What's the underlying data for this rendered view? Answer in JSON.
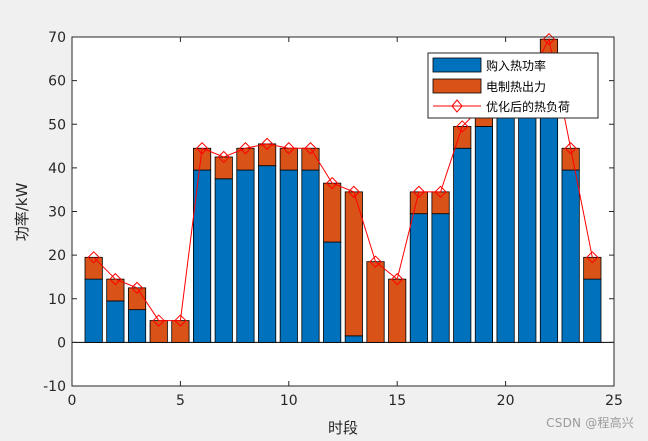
{
  "chart_data": {
    "type": "bar",
    "xlabel": "时段",
    "ylabel": "功率/kW",
    "xlim": [
      0,
      25
    ],
    "ylim": [
      -10,
      70
    ],
    "xticks": [
      0,
      5,
      10,
      15,
      20,
      25
    ],
    "yticks": [
      -10,
      0,
      10,
      20,
      30,
      40,
      50,
      60,
      70
    ],
    "grid": false,
    "legend_position": "top-right",
    "x": [
      1,
      2,
      3,
      4,
      5,
      6,
      7,
      8,
      9,
      10,
      11,
      12,
      13,
      14,
      15,
      16,
      17,
      18,
      19,
      20,
      21,
      22,
      23,
      24
    ],
    "stacked": true,
    "series": [
      {
        "name": "购入热功率",
        "kind": "bar",
        "color": "#0072BD",
        "values": [
          14.5,
          9.5,
          7.5,
          0,
          0,
          39.5,
          37.5,
          39.5,
          40.5,
          39.5,
          39.5,
          23,
          1.5,
          0,
          0,
          29.5,
          29.5,
          44.5,
          49.5,
          54,
          54,
          64.5,
          39.5,
          14.5
        ]
      },
      {
        "name": "电制热出力",
        "kind": "bar",
        "color": "#D95319",
        "values": [
          5,
          5,
          5,
          5,
          5,
          5,
          5,
          5,
          5,
          5,
          5,
          13.5,
          33,
          18.5,
          14.5,
          5,
          5,
          5,
          5,
          0,
          0,
          5,
          5,
          5
        ]
      },
      {
        "name": "优化后的热负荷",
        "kind": "line",
        "color": "#FF0000",
        "marker": "diamond",
        "values": [
          19.5,
          14.5,
          12.5,
          5,
          5,
          44.5,
          42.5,
          44.5,
          45.5,
          44.5,
          44.5,
          36.5,
          34.5,
          18.5,
          14.5,
          34.5,
          34.5,
          49.5,
          54.5,
          54,
          60,
          69.5,
          44.5,
          19.5
        ]
      }
    ]
  },
  "watermark": "CSDN @程高兴"
}
